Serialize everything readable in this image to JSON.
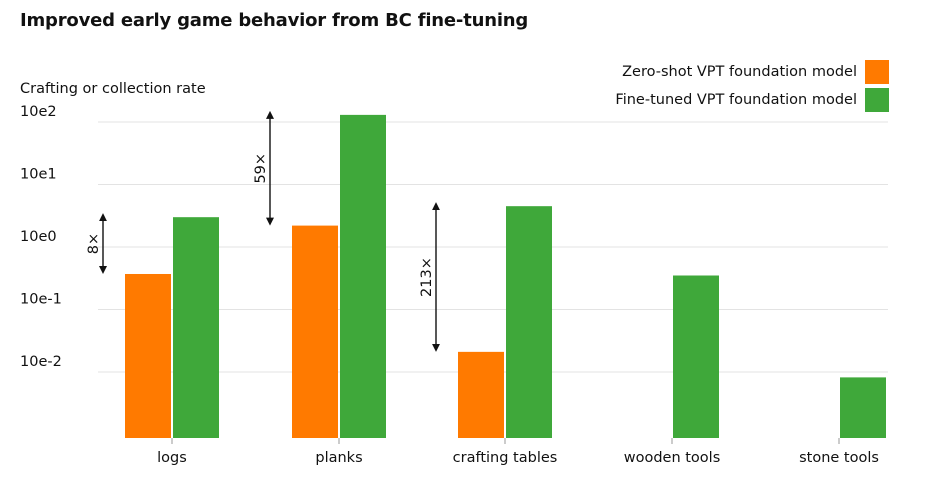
{
  "chart_data": {
    "type": "bar",
    "title": "Improved early game behavior from BC fine-tuning",
    "ylabel": "Crafting or collection rate",
    "xlabel": "",
    "yscale": "log",
    "y_ticks": [
      {
        "value": 100,
        "label": "10e2"
      },
      {
        "value": 10,
        "label": "10e1"
      },
      {
        "value": 1,
        "label": "10e0"
      },
      {
        "value": 0.1,
        "label": "10e-1"
      },
      {
        "value": 0.01,
        "label": "10e-2"
      }
    ],
    "ylim": [
      0.0017,
      100
    ],
    "grid": true,
    "legend_position": "top-right",
    "categories": [
      "logs",
      "planks",
      "crafting tables",
      "wooden tools",
      "stone tools"
    ],
    "series": [
      {
        "name": "Zero-shot VPT foundation model",
        "color": "#ff7a00",
        "values": [
          0.37,
          2.2,
          0.021,
          null,
          null
        ]
      },
      {
        "name": "Fine-tuned VPT foundation model",
        "color": "#3fa83a",
        "values": [
          3.0,
          130,
          4.5,
          0.35,
          0.0082
        ]
      }
    ],
    "annotations": [
      {
        "category": "logs",
        "label": "8×",
        "from": 0.37,
        "to": 3.0
      },
      {
        "category": "planks",
        "label": "59×",
        "from": 2.2,
        "to": 130
      },
      {
        "category": "crafting tables",
        "label": "213×",
        "from": 0.021,
        "to": 4.5
      }
    ]
  }
}
